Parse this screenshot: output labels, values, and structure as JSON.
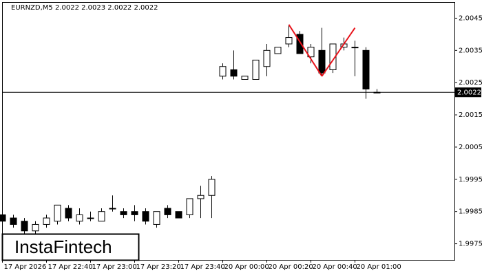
{
  "chart_data": {
    "type": "candlestick",
    "title": "EURNZD,M5  2.0022 2.0023 2.0022 2.0022",
    "brand": "InstaFintech",
    "categories": [
      "17 Apr 2026",
      null,
      null,
      null,
      "17 Apr 22:40",
      null,
      null,
      null,
      "17 Apr 23:00",
      null,
      null,
      null,
      "17 Apr 23:20",
      null,
      null,
      null,
      "17 Apr 23:40",
      null,
      null,
      null,
      "20 Apr 00:00",
      null,
      null,
      null,
      "20 Apr 00:20",
      null,
      null,
      null,
      "20 Apr 00:40",
      null,
      null,
      null,
      "20 Apr 01:00",
      null,
      null
    ],
    "open": [
      1.9984,
      1.9983,
      1.9982,
      1.9979,
      1.9981,
      1.9982,
      1.9986,
      1.9982,
      1.9983,
      1.9982,
      1.9986,
      1.9985,
      1.9985,
      1.9985,
      1.9981,
      1.9986,
      1.9985,
      1.9984,
      1.9989,
      1.999,
      2.0027,
      2.0029,
      2.0026,
      2.0026,
      2.003,
      2.0034,
      2.0037,
      2.004,
      2.0033,
      2.0035,
      2.0029,
      2.0036,
      2.0036,
      2.0035,
      2.0022
    ],
    "high": [
      1.9985,
      1.9984,
      1.9983,
      1.9982,
      1.9984,
      1.9987,
      1.9987,
      1.9986,
      1.9985,
      1.9986,
      1.999,
      1.9986,
      1.9987,
      1.9986,
      1.9985,
      1.9987,
      1.9985,
      1.9989,
      1.9993,
      1.9996,
      2.0031,
      2.0035,
      2.0027,
      2.0032,
      2.0037,
      2.0036,
      2.0043,
      2.0041,
      2.0037,
      2.0042,
      2.0037,
      2.0039,
      2.0038,
      2.0036,
      2.0023
    ],
    "low": [
      1.9981,
      1.998,
      1.9978,
      1.9977,
      1.998,
      1.9981,
      1.9982,
      1.9981,
      1.9982,
      1.9982,
      1.9985,
      1.9983,
      1.9982,
      1.9981,
      1.998,
      1.9983,
      1.9983,
      1.9983,
      1.9983,
      1.9983,
      2.0026,
      2.0026,
      2.0026,
      2.0026,
      2.0027,
      2.0034,
      2.0036,
      2.0034,
      2.0031,
      2.0027,
      2.0028,
      2.0035,
      2.0027,
      2.002,
      2.0022
    ],
    "close": [
      1.9982,
      1.9981,
      1.9979,
      1.9981,
      1.9983,
      1.9987,
      1.9983,
      1.9984,
      1.9983,
      1.9985,
      1.9986,
      1.9984,
      1.9984,
      1.9982,
      1.9985,
      1.9984,
      1.9983,
      1.9989,
      1.999,
      1.9995,
      2.003,
      2.0027,
      2.0027,
      2.0032,
      2.0035,
      2.0036,
      2.0039,
      2.0034,
      2.0036,
      2.0028,
      2.0037,
      2.0037,
      2.0036,
      2.0023,
      2.0022
    ],
    "up_color": "#ffffff",
    "down_color": "#000000",
    "price_line": 2.0022,
    "pattern": {
      "color": "#e8141c",
      "x": [
        26,
        29,
        32
      ],
      "values": [
        2.0043,
        2.0027,
        2.0042
      ]
    },
    "ylim": [
      1.997,
      2.005
    ],
    "yticks": [
      1.9975,
      1.9985,
      1.9995,
      2.0005,
      2.0015,
      2.0025,
      2.0035,
      2.0045
    ]
  }
}
